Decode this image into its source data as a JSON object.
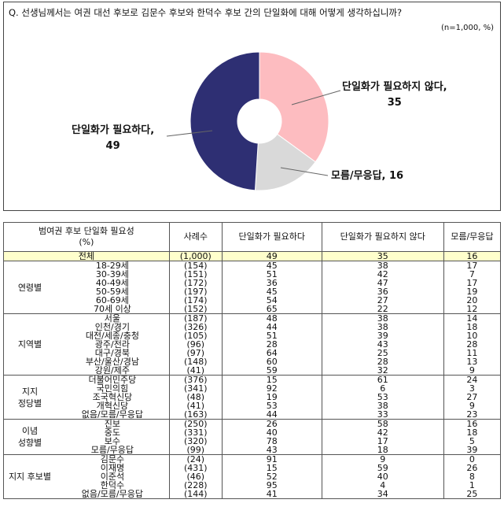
{
  "question": "Q. 선생님께서는 여권 대선 후보로 김문수 후보와 한덕수 후보 간의 단일화에 대해 어떻게 생각하십니까?",
  "note": "(n=1,000, %)",
  "chart_data": {
    "type": "pie",
    "categories": [
      "단일화가 필요하지 않다",
      "모름/무응답",
      "단일화가 필요하다"
    ],
    "values": [
      35,
      16,
      49
    ],
    "colors": [
      "#fdbcc0",
      "#d9d9d9",
      "#2e2f73"
    ],
    "donut": true,
    "start": "top, clockwise"
  },
  "pie_labels": {
    "not_needed": {
      "name": "단일화가 필요하지 않다,",
      "value": "35"
    },
    "unknown": {
      "name": "모름/무응답, 16"
    },
    "needed": {
      "name": "단일화가 필요하다,",
      "value": "49"
    }
  },
  "table": {
    "headers": {
      "subject": "범여권 후보 단일화 필요성",
      "subject_unit": "(%)",
      "n": "사례수",
      "c1": "단일화가 필요하다",
      "c2": "단일화가 필요하지 않다",
      "c3": "모름/무응답"
    },
    "total": {
      "label": "전체",
      "n": "(1,000)",
      "v": [
        "49",
        "35",
        "16"
      ]
    },
    "groups": [
      {
        "label": "연령별",
        "rows": [
          {
            "sub": "18-29세",
            "n": "(154)",
            "v": [
              "45",
              "38",
              "17"
            ]
          },
          {
            "sub": "30-39세",
            "n": "(151)",
            "v": [
              "51",
              "42",
              "7"
            ]
          },
          {
            "sub": "40-49세",
            "n": "(172)",
            "v": [
              "36",
              "47",
              "17"
            ]
          },
          {
            "sub": "50-59세",
            "n": "(197)",
            "v": [
              "45",
              "36",
              "19"
            ]
          },
          {
            "sub": "60-69세",
            "n": "(174)",
            "v": [
              "54",
              "27",
              "20"
            ]
          },
          {
            "sub": "70세 이상",
            "n": "(152)",
            "v": [
              "65",
              "22",
              "12"
            ]
          }
        ]
      },
      {
        "label": "지역별",
        "rows": [
          {
            "sub": "서울",
            "n": "(187)",
            "v": [
              "48",
              "38",
              "14"
            ]
          },
          {
            "sub": "인천/경기",
            "n": "(326)",
            "v": [
              "44",
              "38",
              "18"
            ]
          },
          {
            "sub": "대전/세종/충청",
            "n": "(105)",
            "v": [
              "51",
              "39",
              "10"
            ]
          },
          {
            "sub": "광주/전라",
            "n": "(96)",
            "v": [
              "28",
              "43",
              "28"
            ]
          },
          {
            "sub": "대구/경북",
            "n": "(97)",
            "v": [
              "64",
              "25",
              "11"
            ]
          },
          {
            "sub": "부산/울산/경남",
            "n": "(148)",
            "v": [
              "60",
              "28",
              "13"
            ]
          },
          {
            "sub": "강원/제주",
            "n": "(41)",
            "v": [
              "59",
              "32",
              "9"
            ]
          }
        ]
      },
      {
        "label": "지지\n정당별",
        "rows": [
          {
            "sub": "더불어민주당",
            "n": "(376)",
            "v": [
              "15",
              "61",
              "24"
            ]
          },
          {
            "sub": "국민의힘",
            "n": "(341)",
            "v": [
              "92",
              "6",
              "3"
            ]
          },
          {
            "sub": "조국혁신당",
            "n": "(48)",
            "v": [
              "19",
              "53",
              "27"
            ]
          },
          {
            "sub": "개혁신당",
            "n": "(41)",
            "v": [
              "53",
              "38",
              "9"
            ]
          },
          {
            "sub": "없음/모름/무응답",
            "n": "(163)",
            "v": [
              "44",
              "33",
              "23"
            ]
          }
        ]
      },
      {
        "label": "이념\n성향별",
        "rows": [
          {
            "sub": "진보",
            "n": "(250)",
            "v": [
              "26",
              "58",
              "16"
            ]
          },
          {
            "sub": "중도",
            "n": "(331)",
            "v": [
              "40",
              "42",
              "18"
            ]
          },
          {
            "sub": "보수",
            "n": "(320)",
            "v": [
              "78",
              "17",
              "5"
            ]
          },
          {
            "sub": "모름/무응답",
            "n": "(99)",
            "v": [
              "43",
              "18",
              "39"
            ]
          }
        ]
      },
      {
        "label": "지지 후보별",
        "rows": [
          {
            "sub": "김문수",
            "n": "(24)",
            "v": [
              "91",
              "9",
              "0"
            ]
          },
          {
            "sub": "이재명",
            "n": "(431)",
            "v": [
              "15",
              "59",
              "26"
            ]
          },
          {
            "sub": "이준석",
            "n": "(46)",
            "v": [
              "52",
              "40",
              "8"
            ]
          },
          {
            "sub": "한덕수",
            "n": "(228)",
            "v": [
              "95",
              "4",
              "1"
            ]
          },
          {
            "sub": "없음/모름/무응답",
            "n": "(144)",
            "v": [
              "41",
              "34",
              "25"
            ]
          }
        ]
      }
    ]
  }
}
